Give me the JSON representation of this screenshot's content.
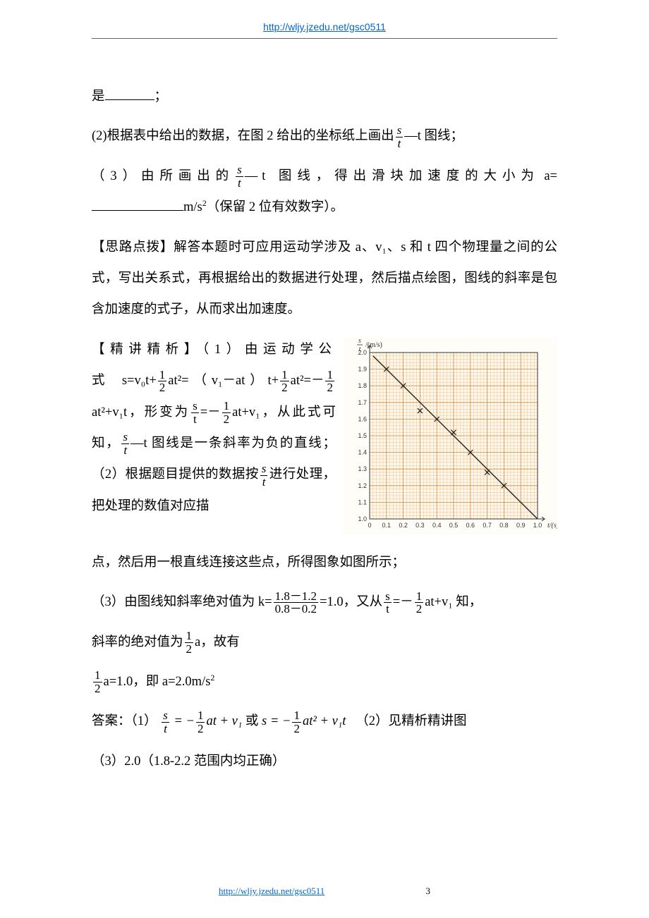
{
  "header": {
    "url": "http://wljy.jzedu.net/gsc0511"
  },
  "footer": {
    "url": "http://wljy.jzedu.net/gsc0511",
    "page": "3"
  },
  "text": {
    "l1a": "是",
    "l1b": "；",
    "l2a": "(2)根据表中给出的数据，在图 2 给出的坐标纸上画出",
    "l2b": "—t 图线；",
    "l3a": "（3）由所画出的",
    "l3b": "—t 图线，得出滑块加速度的大小为",
    "l4a": "a=",
    "l4b": "m/s",
    "l4c": "（保留 2 位有效数字）。",
    "l5": "【思路点拨】解答本题时可应用运动学涉及 a、v₁、s 和 t 四个物理量之间的公式，写出关系式，再根据给出的数据进行处理，然后描点绘图，图线的斜率是包含加速度的式子，从而求出加速度。",
    "l6a": "【精讲精析】（1）由运动学公式",
    "l6b": "s=v₀t+",
    "l6c": "at²=（v₁－at）t+",
    "l6d": "at²=－",
    "l6e": "at²+v₁t，形变为",
    "l6f": "=－",
    "l6g": "at+v₁，从此式可知，",
    "l6h": "—t 图线是一条斜率为负的直线；（2）根据题目提供的数据按",
    "l6i": "进行处理，把处理的数值对应描",
    "l7": "点，然后用一根直线连接这些点，所得图象如图所示；",
    "l8a": "（3）由图线知斜率绝对值为 k=",
    "l8b": "=1.0，又从",
    "l8c": "=－",
    "l8d": "at+v₁ 知，",
    "l9a": "斜率的绝对值为",
    "l9b": "a，故有",
    "l10a": "a=1.0，即 a=2.0m/s",
    "l11a": "答案：（1）",
    "l11b": "或",
    "l11c": "（2）见精析精讲图",
    "l12": "（3）2.0（1.8-2.2 范围内均正确）",
    "fS": "s",
    "fT": "t",
    "fSit": "s",
    "fTit": "t",
    "f1": "1",
    "f2": "2",
    "fnum3": "1.8－1.2",
    "fden3": "0.8－0.2",
    "eq1n": "s",
    "eq1d": "t",
    "eq1r": " = −",
    "eq1e": "at + v₁",
    "eq2l": "s = −",
    "eq2e": "at² + v₁t",
    "sup2": "2"
  },
  "chart": {
    "xlabel": "t/(s)",
    "ylabel_top": "s",
    "ylabel_bot": "t",
    "ylabel_unit": "/(m/s)",
    "xlim": [
      0,
      1.0
    ],
    "ylim": [
      1.0,
      2.0
    ],
    "xticks": [
      "0",
      "0.1",
      "0.2",
      "0.3",
      "0.4",
      "0.5",
      "0.6",
      "0.7",
      "0.8",
      "0.9",
      "1.0"
    ],
    "yticks": [
      "1.0",
      "1.1",
      "1.2",
      "1.3",
      "1.4",
      "1.5",
      "1.6",
      "1.7",
      "1.8",
      "1.9",
      "2.0"
    ],
    "points": [
      [
        0.1,
        1.9
      ],
      [
        0.2,
        1.8
      ],
      [
        0.3,
        1.65
      ],
      [
        0.4,
        1.6
      ],
      [
        0.5,
        1.52
      ],
      [
        0.6,
        1.4
      ],
      [
        0.7,
        1.28
      ],
      [
        0.8,
        1.2
      ]
    ],
    "line": [
      [
        0.02,
        1.98
      ],
      [
        1.0,
        1.0
      ]
    ],
    "ticklabel_fontsize": 9,
    "axis_label_fontsize": 10,
    "colors": {
      "grid_minor": "#e6b87a",
      "grid_major": "#c98f4a",
      "axis": "#333333",
      "line": "#222222",
      "marker": "#222222",
      "background": "#fffdf8",
      "plotfill": "#fff7ea"
    },
    "marker": "x",
    "marker_size": 7,
    "line_width": 1.4,
    "n_minor": 5
  }
}
